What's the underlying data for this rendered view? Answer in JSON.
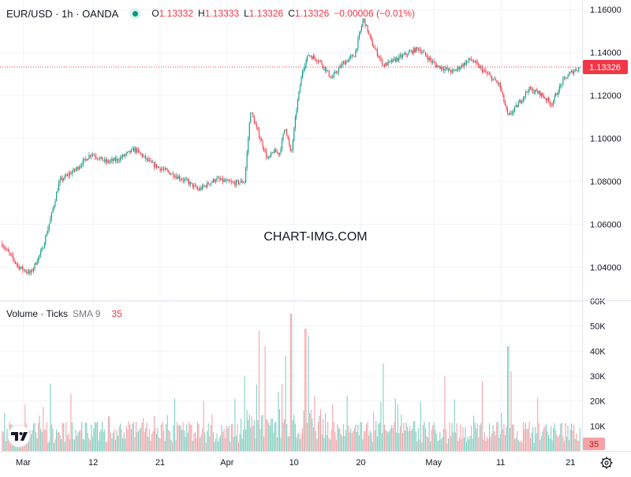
{
  "header": {
    "symbol": "EUR/USD · 1h · OANDA",
    "o_label": "O",
    "o_value": "1.13332",
    "h_label": "H",
    "h_value": "1.13333",
    "l_label": "L",
    "l_value": "1.13326",
    "c_label": "C",
    "c_value": "1.13326",
    "change": "−0.00006 (−0.01%)"
  },
  "volume_header": {
    "title": "Volume · Ticks",
    "sma_label": "SMA 9",
    "sma_value": "35"
  },
  "watermark": "CHART-IMG.COM",
  "colors": {
    "up": "#089981",
    "down": "#f23645",
    "up_volume": "#7fcfc0",
    "down_volume": "#f5a3a8",
    "grid": "#f0f3fa"
  },
  "chart_data": [
    {
      "type": "candlestick",
      "title": "EUR/USD · 1h · OANDA",
      "y_ticks": [
        "1.16000",
        "1.14000",
        "1.12000",
        "1.10000",
        "1.08000",
        "1.06000",
        "1.04000"
      ],
      "ylim": [
        1.0245,
        1.1645
      ],
      "last_price": "1.13326",
      "last_value": 1.13326,
      "x_ticks": [
        {
          "label": "Mar",
          "pos": 0.04
        },
        {
          "label": "12",
          "pos": 0.16
        },
        {
          "label": "21",
          "pos": 0.275
        },
        {
          "label": "Apr",
          "pos": 0.39
        },
        {
          "label": "10",
          "pos": 0.505
        },
        {
          "label": "20",
          "pos": 0.62
        },
        {
          "label": "May",
          "pos": 0.745
        },
        {
          "label": "11",
          "pos": 0.86
        },
        {
          "label": "21",
          "pos": 0.98
        }
      ],
      "path": [
        [
          0.0,
          1.051
        ],
        [
          0.03,
          1.04
        ],
        [
          0.05,
          1.037
        ],
        [
          0.07,
          1.048
        ],
        [
          0.085,
          1.063
        ],
        [
          0.1,
          1.08
        ],
        [
          0.13,
          1.086
        ],
        [
          0.155,
          1.093
        ],
        [
          0.18,
          1.089
        ],
        [
          0.2,
          1.09
        ],
        [
          0.23,
          1.095
        ],
        [
          0.26,
          1.088
        ],
        [
          0.29,
          1.084
        ],
        [
          0.32,
          1.08
        ],
        [
          0.34,
          1.076
        ],
        [
          0.37,
          1.081
        ],
        [
          0.4,
          1.079
        ],
        [
          0.42,
          1.08
        ],
        [
          0.43,
          1.113
        ],
        [
          0.44,
          1.105
        ],
        [
          0.46,
          1.09
        ],
        [
          0.47,
          1.094
        ],
        [
          0.48,
          1.093
        ],
        [
          0.49,
          1.106
        ],
        [
          0.5,
          1.092
        ],
        [
          0.51,
          1.115
        ],
        [
          0.52,
          1.132
        ],
        [
          0.53,
          1.139
        ],
        [
          0.55,
          1.136
        ],
        [
          0.57,
          1.128
        ],
        [
          0.59,
          1.135
        ],
        [
          0.61,
          1.139
        ],
        [
          0.625,
          1.156
        ],
        [
          0.64,
          1.144
        ],
        [
          0.66,
          1.134
        ],
        [
          0.69,
          1.138
        ],
        [
          0.72,
          1.142
        ],
        [
          0.75,
          1.134
        ],
        [
          0.78,
          1.131
        ],
        [
          0.81,
          1.137
        ],
        [
          0.83,
          1.132
        ],
        [
          0.86,
          1.125
        ],
        [
          0.875,
          1.11
        ],
        [
          0.89,
          1.115
        ],
        [
          0.91,
          1.123
        ],
        [
          0.93,
          1.121
        ],
        [
          0.95,
          1.116
        ],
        [
          0.97,
          1.127
        ],
        [
          0.985,
          1.131
        ],
        [
          1.0,
          1.1333
        ]
      ]
    },
    {
      "type": "bar",
      "title": "Volume · Ticks",
      "y_ticks": [
        "60K",
        "50K",
        "40K",
        "30K",
        "20K",
        "10K"
      ],
      "ylim": [
        0,
        60000
      ],
      "last_value": "35",
      "spikes": [
        {
          "pos": 0.085,
          "value": 27000
        },
        {
          "pos": 0.12,
          "value": 23000
        },
        {
          "pos": 0.42,
          "value": 30000
        },
        {
          "pos": 0.445,
          "value": 48000
        },
        {
          "pos": 0.455,
          "value": 42000
        },
        {
          "pos": 0.49,
          "value": 38000
        },
        {
          "pos": 0.5,
          "value": 55000
        },
        {
          "pos": 0.525,
          "value": 49000
        },
        {
          "pos": 0.53,
          "value": 46000
        },
        {
          "pos": 0.66,
          "value": 35000
        },
        {
          "pos": 0.765,
          "value": 30000
        },
        {
          "pos": 0.83,
          "value": 28000
        },
        {
          "pos": 0.875,
          "value": 42000
        },
        {
          "pos": 0.88,
          "value": 32000
        }
      ]
    }
  ]
}
